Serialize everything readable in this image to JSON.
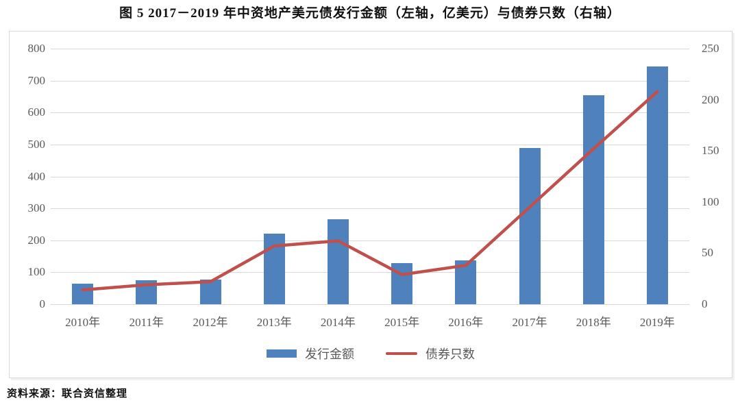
{
  "title": "图 5  2017－2019 年中资地产美元债发行金额（左轴，亿美元）与债券只数（右轴）",
  "source": "资料来源：联合资信整理",
  "colors": {
    "bar": "#4f81bd",
    "line": "#c0504d",
    "grid": "#d9d9d9",
    "axis_text": "#595959"
  },
  "chart_data": {
    "type": "bar",
    "subtype": "bar+line-combo",
    "title": "图 5  2017－2019 年中资地产美元债发行金额（左轴，亿美元）与债券只数（右轴）",
    "categories": [
      "2010年",
      "2011年",
      "2012年",
      "2013年",
      "2014年",
      "2015年",
      "2016年",
      "2017年",
      "2018年",
      "2019年"
    ],
    "series": [
      {
        "name": "发行金额",
        "type": "bar",
        "axis": "left",
        "values": [
          65,
          75,
          78,
          220,
          265,
          128,
          138,
          490,
          655,
          745
        ]
      },
      {
        "name": "债券只数",
        "type": "line",
        "axis": "right",
        "values": [
          14,
          19,
          22,
          57,
          62,
          29,
          38,
          95,
          152,
          208
        ]
      }
    ],
    "left_axis": {
      "min": 0,
      "max": 800,
      "step": 100,
      "ticks": [
        0,
        100,
        200,
        300,
        400,
        500,
        600,
        700,
        800
      ]
    },
    "right_axis": {
      "min": 0,
      "max": 250,
      "step": 50,
      "ticks": [
        0,
        50,
        100,
        150,
        200,
        250
      ]
    },
    "grid": true,
    "legend_position": "bottom"
  }
}
